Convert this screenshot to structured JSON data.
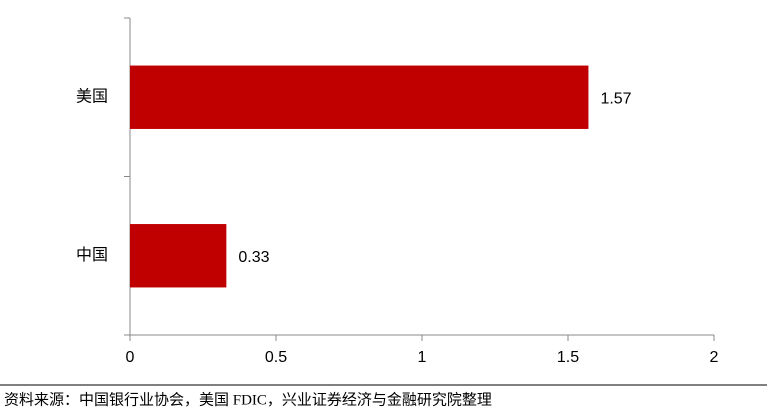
{
  "chart_data": {
    "type": "barh",
    "categories": [
      "美国",
      "中国"
    ],
    "values": [
      1.57,
      0.33
    ],
    "color": "#c00000",
    "xlim": [
      0,
      2
    ],
    "xticks": [
      0,
      0.5,
      1,
      1.5,
      2
    ],
    "source": "资料来源：中国银行业协会，美国 FDIC，兴业证券经济与金融研究院整理"
  }
}
